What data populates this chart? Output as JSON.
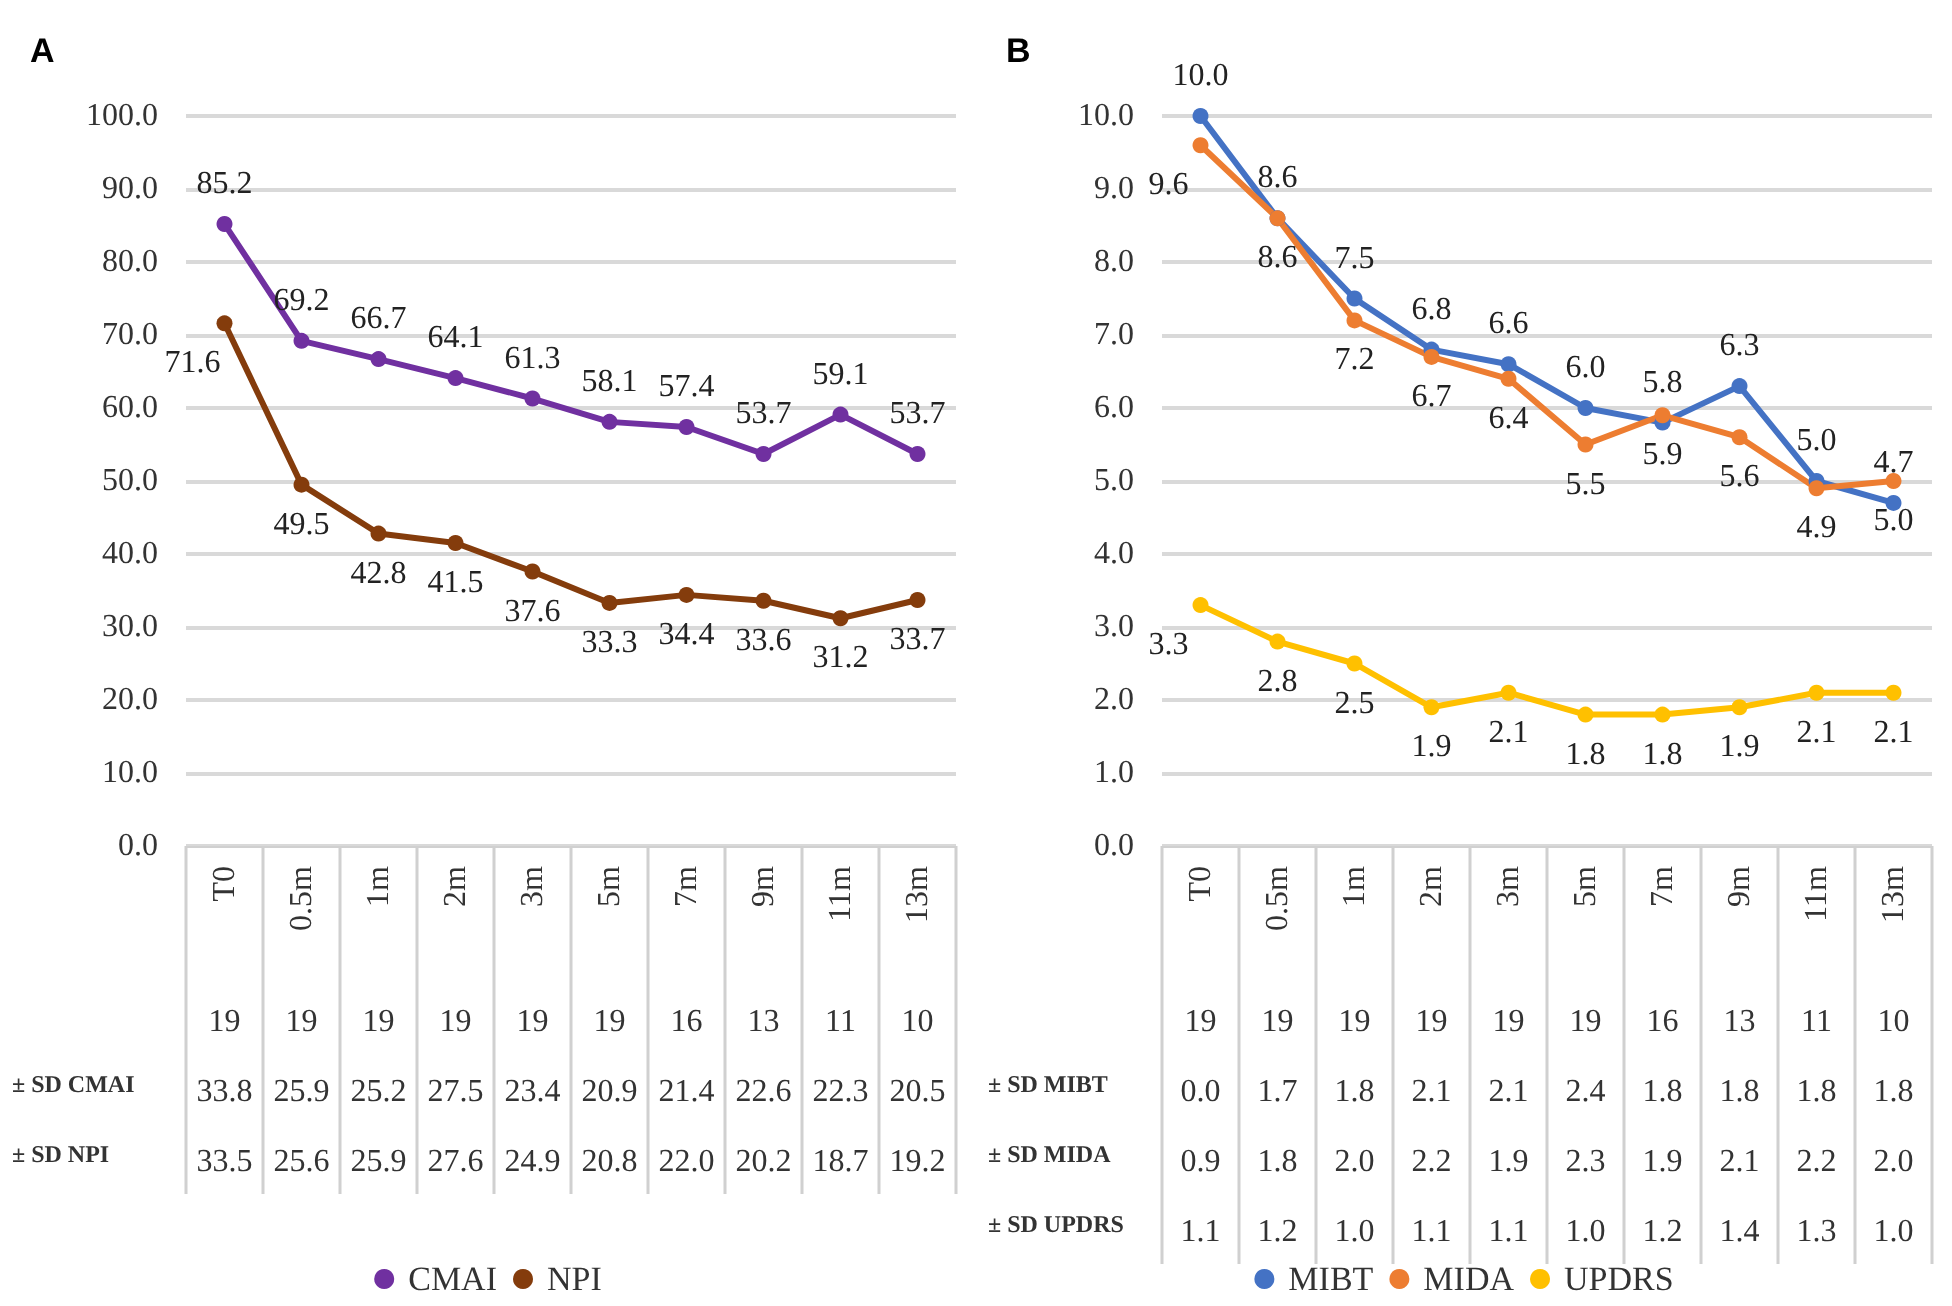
{
  "chart_data": [
    {
      "type": "line",
      "title": "A",
      "categories": [
        "T0",
        "0.5m",
        "1m",
        "2m",
        "3m",
        "5m",
        "7m",
        "9m",
        "11m",
        "13m"
      ],
      "ylim": [
        0,
        100
      ],
      "yticks": [
        {
          "value": 0,
          "label": "0.0"
        },
        {
          "value": 10,
          "label": "10.0"
        },
        {
          "value": 20,
          "label": "20.0"
        },
        {
          "value": 30,
          "label": "30.0"
        },
        {
          "value": 40,
          "label": "40.0"
        },
        {
          "value": 50,
          "label": "50.0"
        },
        {
          "value": 60,
          "label": "60.0"
        },
        {
          "value": 70,
          "label": "70.0"
        },
        {
          "value": 80,
          "label": "80.0"
        },
        {
          "value": 90,
          "label": "90.0"
        },
        {
          "value": 100,
          "label": "100.0"
        }
      ],
      "grid": "y",
      "legend": "bottom",
      "marker": "circle",
      "series": [
        {
          "name": "CMAI",
          "color": "#7030a0",
          "values": [
            85.2,
            69.2,
            66.7,
            64.1,
            61.3,
            58.1,
            57.4,
            53.7,
            59.1,
            53.7
          ],
          "value_labels": [
            "85.2",
            "69.2",
            "66.7",
            "64.1",
            "61.3",
            "58.1",
            "57.4",
            "53.7",
            "59.1",
            "53.7"
          ]
        },
        {
          "name": "NPI",
          "color": "#843c0c",
          "values": [
            71.6,
            49.5,
            42.8,
            41.5,
            37.6,
            33.3,
            34.4,
            33.6,
            31.2,
            33.7
          ],
          "value_labels": [
            "71.6",
            "49.5",
            "42.8",
            "41.5",
            "37.6",
            "33.3",
            "34.4",
            "33.6",
            "31.2",
            "33.7"
          ]
        }
      ],
      "annotations": [
        "19",
        "19",
        "19",
        "19",
        "19",
        "19",
        "16",
        "13",
        "11",
        "10",
        "± SD CMAI",
        "33.8",
        "25.9",
        "25.2",
        "27.5",
        "23.4",
        "20.9",
        "21.4",
        "22.6",
        "22.3",
        "20.5",
        "± SD NPI",
        "33.5",
        "25.6",
        "25.9",
        "27.6",
        "24.9",
        "20.8",
        "22.0",
        "20.2",
        "18.7",
        "19.2"
      ]
    },
    {
      "type": "line",
      "title": "B",
      "categories": [
        "T0",
        "0.5m",
        "1m",
        "2m",
        "3m",
        "5m",
        "7m",
        "9m",
        "11m",
        "13m"
      ],
      "ylim": [
        0,
        10
      ],
      "yticks": [
        {
          "value": 0,
          "label": "0.0"
        },
        {
          "value": 1,
          "label": "1.0"
        },
        {
          "value": 2,
          "label": "2.0"
        },
        {
          "value": 3,
          "label": "3.0"
        },
        {
          "value": 4,
          "label": "4.0"
        },
        {
          "value": 5,
          "label": "5.0"
        },
        {
          "value": 6,
          "label": "6.0"
        },
        {
          "value": 7,
          "label": "7.0"
        },
        {
          "value": 8,
          "label": "8.0"
        },
        {
          "value": 9,
          "label": "9.0"
        },
        {
          "value": 10,
          "label": "10.0"
        }
      ],
      "grid": "y",
      "legend": "bottom",
      "marker": "circle",
      "series": [
        {
          "name": "MIBT",
          "color": "#4472c4",
          "values": [
            10.0,
            8.6,
            7.5,
            6.8,
            6.6,
            6.0,
            5.8,
            6.3,
            5.0,
            4.7
          ],
          "value_labels": [
            "10.0",
            "8.6",
            "7.5",
            "6.8",
            "6.6",
            "6.0",
            "5.8",
            "6.3",
            "5.0",
            "4.7"
          ]
        },
        {
          "name": "MIDA",
          "color": "#ed7d31",
          "values": [
            9.6,
            8.6,
            7.2,
            6.7,
            6.4,
            5.5,
            5.9,
            5.6,
            4.9,
            5.0
          ],
          "value_labels": [
            "9.6",
            "8.6",
            "7.2",
            "6.7",
            "6.4",
            "5.5",
            "5.9",
            "5.6",
            "4.9",
            "5.0"
          ]
        },
        {
          "name": "UPDRS",
          "color": "#ffc000",
          "values": [
            3.3,
            2.8,
            2.5,
            1.9,
            2.1,
            1.8,
            1.8,
            1.9,
            2.1,
            2.1
          ],
          "value_labels": [
            "3.3",
            "2.8",
            "2.5",
            "1.9",
            "2.1",
            "1.8",
            "1.8",
            "1.9",
            "2.1",
            "2.1"
          ]
        }
      ],
      "annotations": [
        "19",
        "19",
        "19",
        "19",
        "19",
        "19",
        "16",
        "13",
        "11",
        "10",
        "± SD MIBT",
        "0.0",
        "1.7",
        "1.8",
        "2.1",
        "2.1",
        "2.4",
        "1.8",
        "1.8",
        "1.8",
        "1.8",
        "± SD MIDA",
        "0.9",
        "1.8",
        "2.0",
        "2.2",
        "1.9",
        "2.3",
        "1.9",
        "2.1",
        "2.2",
        "2.0",
        "± SD UPDRS",
        "1.1",
        "1.2",
        "1.0",
        "1.1",
        "1.1",
        "1.0",
        "1.2",
        "1.4",
        "1.3",
        "1.0"
      ]
    }
  ]
}
